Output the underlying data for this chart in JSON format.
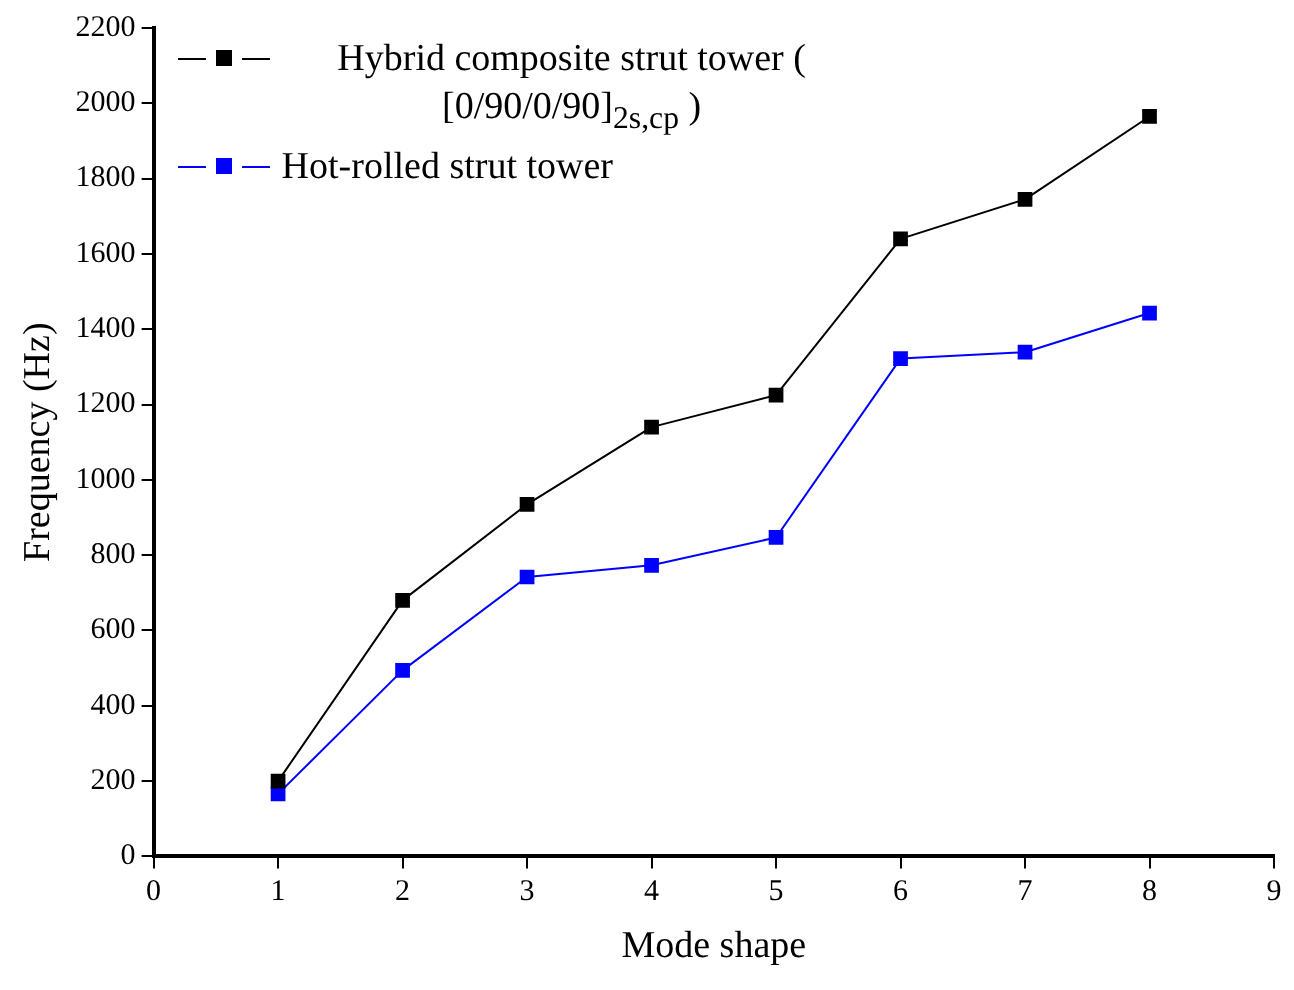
{
  "chart_data": {
    "type": "line",
    "xlabel": "Mode shape",
    "ylabel": "Frequency (Hz)",
    "x": [
      1,
      2,
      3,
      4,
      5,
      6,
      7,
      8
    ],
    "series": [
      {
        "name": "Hybrid composite strut tower ( [0/90/0/90]$_{2s,cp}$ )",
        "color": "#000000",
        "values": [
          200,
          680,
          935,
          1140,
          1225,
          1640,
          1745,
          1965
        ]
      },
      {
        "name": "Hot-rolled strut tower",
        "color": "#0000ff",
        "values": [
          166,
          494,
          742,
          773,
          847,
          1322,
          1339,
          1443
        ]
      }
    ],
    "xlim": [
      0,
      9
    ],
    "xticks": [
      0,
      1,
      2,
      3,
      4,
      5,
      6,
      7,
      8,
      9
    ],
    "ylim": [
      0,
      2200
    ],
    "yticks": [
      0,
      200,
      400,
      600,
      800,
      1000,
      1200,
      1400,
      1600,
      1800,
      2000,
      2200
    ],
    "grid": false,
    "legend": "top left",
    "marker": "square",
    "line_style": "solid"
  }
}
